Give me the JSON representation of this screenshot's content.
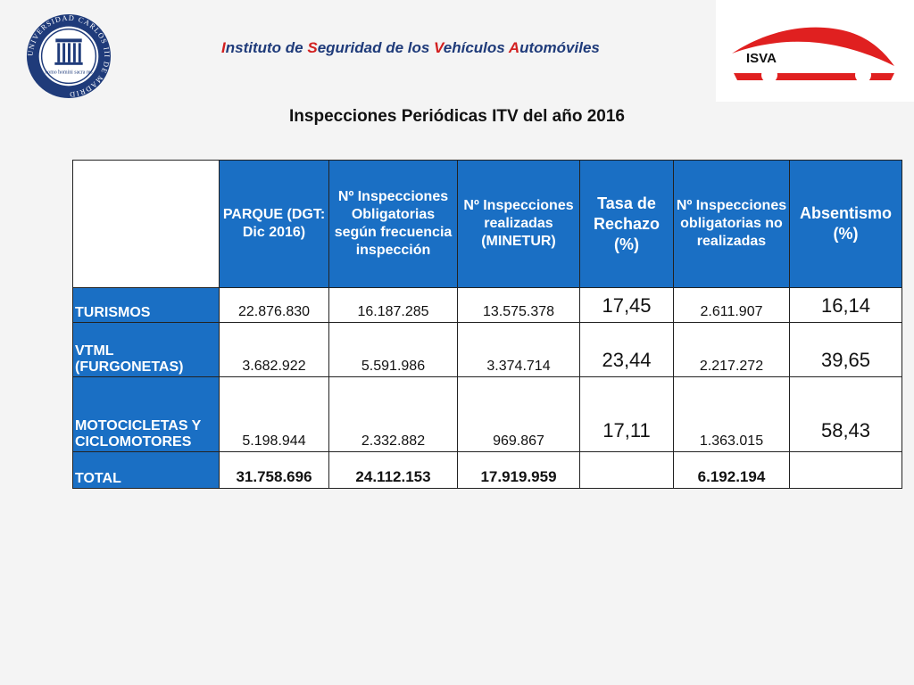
{
  "header": {
    "institute_parts": [
      {
        "text": "I",
        "hl": true
      },
      {
        "text": "nstituto de ",
        "hl": false
      },
      {
        "text": "S",
        "hl": true
      },
      {
        "text": "eguridad de los ",
        "hl": false
      },
      {
        "text": "V",
        "hl": true
      },
      {
        "text": "ehículos ",
        "hl": false
      },
      {
        "text": "A",
        "hl": true
      },
      {
        "text": "utomóviles",
        "hl": false
      }
    ],
    "seal_text": "UNIVERSIDAD CARLOS III DE MADRID",
    "seal_motto": "homo homini sacra res",
    "logo_text": "ISVA"
  },
  "title": "Inspecciones Periódicas ITV del año 2016",
  "colors": {
    "header_blue": "#1a6fc4",
    "accent_red": "#d21f1f",
    "navy": "#1f3b7a"
  },
  "table": {
    "columns": [
      "",
      "PARQUE (DGT: Dic 2016)",
      "Nº Inspecciones Obligatorias según frecuencia inspección",
      "Nº Inspecciones realizadas (MINETUR)",
      "Tasa de Rechazo (%)",
      "Nº Inspecciones obligatorias no realizadas",
      "Absentismo (%)"
    ],
    "rows": [
      {
        "label": "TURISMOS",
        "parque": "22.876.830",
        "obligatorias": "16.187.285",
        "realizadas": "13.575.378",
        "rechazo": "17,45",
        "no_realizadas": "2.611.907",
        "absentismo": "16,14"
      },
      {
        "label": "VTML (FURGONETAS)",
        "parque": "3.682.922",
        "obligatorias": "5.591.986",
        "realizadas": "3.374.714",
        "rechazo": "23,44",
        "no_realizadas": "2.217.272",
        "absentismo": "39,65"
      },
      {
        "label": "MOTOCICLETAS Y CICLOMOTORES",
        "parque": "5.198.944",
        "obligatorias": "2.332.882",
        "realizadas": "969.867",
        "rechazo": "17,11",
        "no_realizadas": "1.363.015",
        "absentismo": "58,43"
      },
      {
        "label": "TOTAL",
        "parque": "31.758.696",
        "obligatorias": "24.112.153",
        "realizadas": "17.919.959",
        "rechazo": "",
        "no_realizadas": "6.192.194",
        "absentismo": ""
      }
    ]
  }
}
